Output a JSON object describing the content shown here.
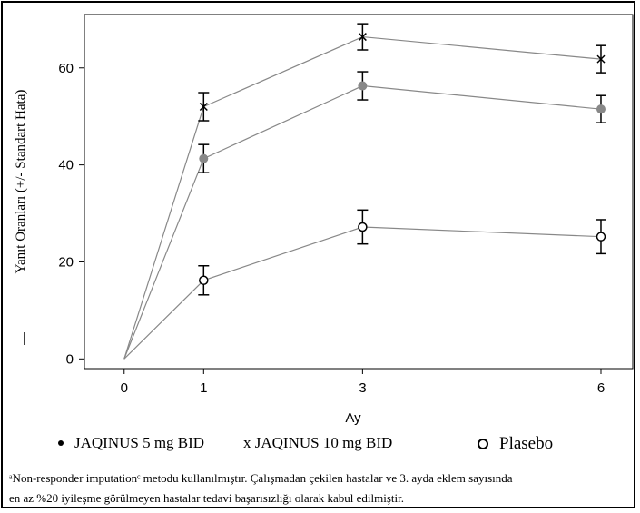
{
  "chart_data": {
    "type": "line",
    "xlabel": "Ay",
    "ylabel": "Yanıt Oranları (+/- Standart Hata)",
    "x": [
      0,
      1,
      3,
      6
    ],
    "x_ticks": [
      "0",
      "1",
      "3",
      "6"
    ],
    "y_ticks": [
      "0",
      "20",
      "40",
      "60"
    ],
    "ylim": [
      -2,
      71
    ],
    "grid": false,
    "legend_position": "bottom",
    "series": [
      {
        "name": "JAQINUS 5 mg BID",
        "marker": "filled-circle",
        "color": "#888888",
        "values": [
          0,
          41.3,
          56.3,
          51.5
        ],
        "error": [
          0,
          2.9,
          2.9,
          2.8
        ]
      },
      {
        "name": "JAQINUS 10 mg BID",
        "marker": "x",
        "color": "#000000",
        "values": [
          0,
          52.0,
          66.4,
          61.8
        ],
        "error": [
          0,
          2.9,
          2.7,
          2.8
        ]
      },
      {
        "name": "Plasebo",
        "marker": "open-circle",
        "color": "#000000",
        "values": [
          0,
          16.2,
          27.2,
          25.2
        ],
        "error": [
          0,
          3.0,
          3.5,
          3.5
        ]
      }
    ]
  },
  "legend": {
    "item1": "JAQINUS 5 mg BID",
    "item2": "x JAQINUS 10 mg BID",
    "item3": "Plasebo"
  },
  "footnote": {
    "line1": "ᵃNon-responder imputationᶜ metodu kullanılmıştır. Çalışmadan çekilen hastalar ve  3. ayda eklem sayısında",
    "line2": "en az %20 iyileşme görülmeyen hastalar tedavi başarısızlığı olarak kabul edilmiştir."
  },
  "styles": {
    "line_color": "#888888",
    "axis_color": "#000000"
  }
}
